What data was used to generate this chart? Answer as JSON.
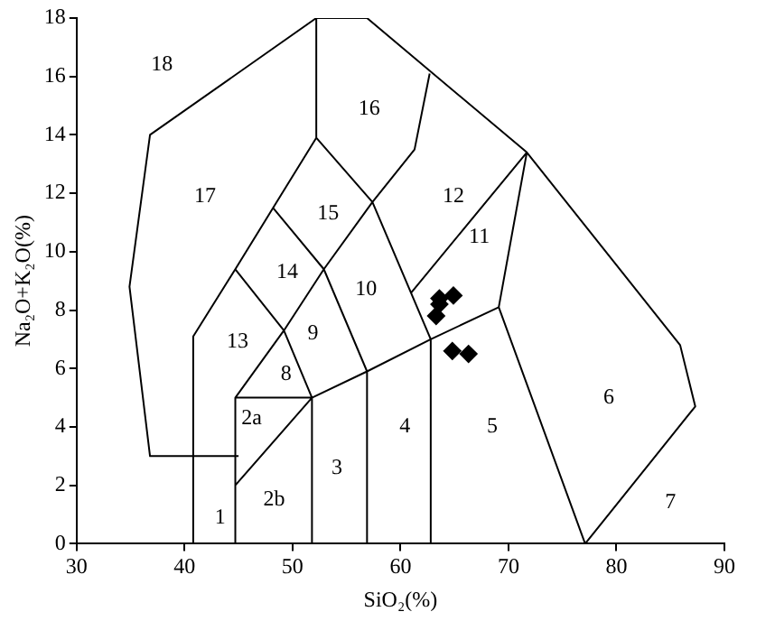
{
  "chart_data": {
    "type": "scatter",
    "xlabel": "SiO₂(%)",
    "ylabel": "Na₂O+K₂O(%)",
    "xlim": [
      30,
      90
    ],
    "xticks": [
      30,
      40,
      50,
      60,
      70,
      80,
      90
    ],
    "ylim": [
      0,
      18
    ],
    "yticks": [
      0,
      2,
      4,
      6,
      8,
      10,
      12,
      14,
      16,
      18
    ],
    "grid": false,
    "legend": false,
    "marker": "diamond",
    "series": [
      {
        "type": "scatter",
        "color": "#000000",
        "x": [
          63.6,
          63.6,
          64.9,
          63.3,
          64.8,
          66.3
        ],
        "values": [
          8.4,
          8.2,
          8.5,
          7.8,
          6.6,
          6.5
        ]
      },
      {
        "type": "line",
        "color": "#000000",
        "marker": "none",
        "x": [
          45,
          36.8,
          34.9,
          36.8,
          52.2,
          56.9,
          71.7,
          85.9,
          87.3,
          77.1,
          null,
          40.8,
          40.8,
          44.7,
          48.2,
          52.2,
          52.2,
          null,
          44.7,
          44.7,
          51.8,
          51.8,
          null,
          44.7,
          51.8,
          null,
          44.7,
          49.2,
          52.9,
          57.4,
          61.3,
          62.7,
          null,
          44.7,
          49.2,
          51.8,
          null,
          48.2,
          52.9,
          56.9,
          56.9,
          null,
          52.2,
          57.4,
          62.8,
          62.8,
          null,
          51.8,
          56.9,
          62.8,
          69.1,
          77.1,
          null,
          69.1,
          71.7,
          null,
          61,
          71.7
        ],
        "values": [
          3,
          3,
          8.8,
          14,
          18,
          18,
          13.4,
          6.8,
          4.7,
          0,
          null,
          0,
          7.1,
          9.4,
          11.5,
          13.9,
          18,
          null,
          0,
          5,
          5,
          0,
          null,
          2,
          5,
          null,
          5,
          7.3,
          9.4,
          11.7,
          13.5,
          16.1,
          null,
          9.4,
          7.3,
          5,
          null,
          11.5,
          9.4,
          5.9,
          0,
          null,
          13.9,
          11.7,
          7,
          0,
          null,
          5,
          5.9,
          7,
          8.1,
          0,
          null,
          8.1,
          13.4,
          null,
          8.6,
          13.4
        ]
      }
    ],
    "annotations": [
      "18",
      "16",
      "17",
      "15",
      "12",
      "11",
      "14",
      "10",
      "9",
      "13",
      "8",
      "2a",
      "4",
      "5",
      "6",
      "3",
      "2b",
      "1",
      "7"
    ]
  }
}
